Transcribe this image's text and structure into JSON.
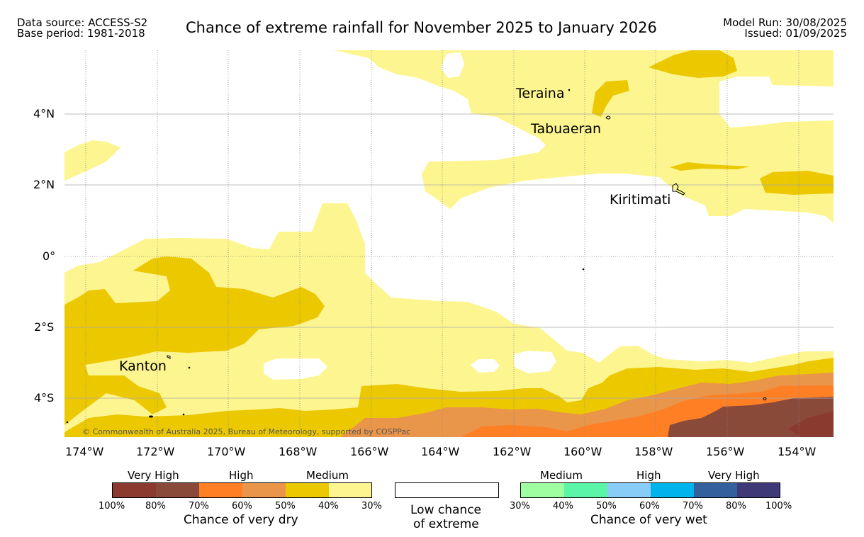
{
  "header": {
    "source_line1": "Data source: ACCESS-S2",
    "source_line2": "Base period: 1981-2018",
    "title": "Chance of extreme rainfall for November 2025 to January 2026",
    "model_run": "Model Run: 30/08/2025",
    "issued": "Issued: 01/09/2025"
  },
  "map": {
    "lat_labels": [
      "4°N",
      "2°N",
      "0°",
      "2°S",
      "4°S"
    ],
    "lon_labels": [
      "174°W",
      "172°W",
      "170°W",
      "168°W",
      "166°W",
      "164°W",
      "162°W",
      "160°W",
      "158°W",
      "156°W",
      "154°W"
    ],
    "places": {
      "teraina": "Teraina",
      "tabuaeran": "Tabuaeran",
      "kiritimati": "Kiritimati",
      "kanton": "Kanton"
    },
    "copyright": "© Commonwealth of Australia 2025, Bureau of Meteorology, supported by COSPPac",
    "colors": {
      "dry_very_high_1": "#8b3a2f",
      "dry_very_high_2": "#8a4a3a",
      "dry_high_1": "#ff7f24",
      "dry_high_2": "#e9954a",
      "dry_medium_1": "#ecc800",
      "dry_medium_2": "#fdf58f",
      "low": "#ffffff"
    }
  },
  "legend": {
    "dry": {
      "categories": [
        "Very High",
        "High",
        "Medium"
      ],
      "percents": [
        "100%",
        "80%",
        "70%",
        "60%",
        "50%",
        "40%",
        "30%"
      ],
      "colors": [
        "#8b3a2f",
        "#8a4a3a",
        "#ff7f24",
        "#e9954a",
        "#ecc800",
        "#fdf58f"
      ],
      "caption": "Chance of very dry"
    },
    "low": {
      "line1": "Low chance",
      "line2": "of extreme"
    },
    "wet": {
      "categories": [
        "Medium",
        "High",
        "Very High"
      ],
      "percents": [
        "30%",
        "40%",
        "50%",
        "60%",
        "70%",
        "80%",
        "100%"
      ],
      "colors": [
        "#9effa0",
        "#5bf5a8",
        "#87cdf8",
        "#00b3ea",
        "#34609e",
        "#3f3a77"
      ],
      "caption": "Chance of very wet"
    }
  }
}
